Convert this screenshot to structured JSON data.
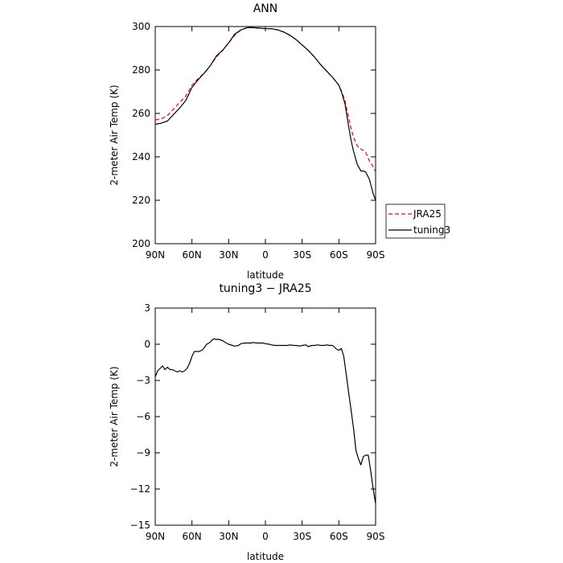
{
  "chart_data": [
    {
      "type": "line",
      "title": "ANN",
      "xlabel": "latitude",
      "ylabel": "2-meter Air Temp (K)",
      "xticks": [
        "90N",
        "60N",
        "30N",
        "0",
        "30S",
        "60S",
        "90S"
      ],
      "yticks": [
        "200",
        "220",
        "240",
        "260",
        "280",
        "300"
      ],
      "xlim": [
        90,
        -90
      ],
      "ylim": [
        200,
        300
      ],
      "legend_placement": "right",
      "series": [
        {
          "name": "JRA25",
          "color": "#ff0000",
          "dash": "dashed",
          "x": [
            90,
            85,
            80,
            75,
            70,
            65,
            60,
            55,
            50,
            45,
            40,
            35,
            30,
            25,
            20,
            15,
            10,
            5,
            0,
            -5,
            -10,
            -15,
            -20,
            -25,
            -30,
            -35,
            -40,
            -45,
            -50,
            -55,
            -60,
            -62,
            -65,
            -68,
            -70,
            -72,
            -75,
            -78,
            -80,
            -82,
            -85,
            -88,
            -90
          ],
          "y": [
            257,
            257.5,
            259,
            262,
            265,
            268,
            273,
            276,
            278.5,
            282,
            286,
            289,
            292.5,
            296,
            298.5,
            299.5,
            299.5,
            299.2,
            299,
            299,
            298.5,
            297.5,
            296,
            294,
            291.5,
            289,
            286,
            282.5,
            279.5,
            276.5,
            273,
            270.5,
            266,
            258,
            253,
            249,
            245,
            243.5,
            243,
            242,
            238,
            235.5,
            233
          ]
        },
        {
          "name": "tuning3",
          "color": "#000000",
          "dash": "solid",
          "x": [
            90,
            85,
            80,
            75,
            70,
            65,
            60,
            55,
            50,
            45,
            40,
            35,
            30,
            25,
            20,
            15,
            10,
            5,
            0,
            -5,
            -10,
            -15,
            -20,
            -25,
            -30,
            -35,
            -40,
            -45,
            -50,
            -55,
            -60,
            -62,
            -65,
            -68,
            -70,
            -72,
            -75,
            -78,
            -80,
            -82,
            -85,
            -88,
            -90
          ],
          "y": [
            255,
            255.5,
            256.5,
            259.5,
            262.5,
            266,
            272,
            275.5,
            278.5,
            282,
            286.5,
            289,
            292.5,
            296.5,
            298.5,
            299.5,
            299.5,
            299.3,
            299,
            299,
            298.5,
            297.5,
            296,
            294,
            291.5,
            289,
            286,
            282.5,
            279.5,
            276.5,
            273,
            270,
            264.5,
            254,
            247.5,
            242.5,
            236.5,
            233.5,
            233.5,
            233,
            229.5,
            223,
            220
          ]
        }
      ]
    },
    {
      "type": "line",
      "title": "tuning3 − JRA25",
      "xlabel": "latitude",
      "ylabel": "2-meter Air Temp (K)",
      "xticks": [
        "90N",
        "60N",
        "30N",
        "0",
        "30S",
        "60S",
        "90S"
      ],
      "yticks": [
        "−15",
        "−12",
        "−9",
        "−6",
        "−3",
        "0",
        "3"
      ],
      "xlim": [
        90,
        -90
      ],
      "ylim": [
        -15,
        3
      ],
      "series": [
        {
          "color": "#000000",
          "dash": "solid",
          "x": [
            90,
            88,
            86,
            84,
            82,
            80,
            78,
            76,
            74,
            72,
            70,
            68,
            66,
            64,
            62,
            60,
            58,
            56,
            54,
            52,
            50,
            48,
            46,
            44,
            42,
            40,
            38,
            35,
            32,
            30,
            27,
            25,
            22,
            20,
            17,
            15,
            12,
            10,
            7,
            5,
            2,
            0,
            -3,
            -5,
            -8,
            -10,
            -13,
            -15,
            -18,
            -20,
            -23,
            -25,
            -28,
            -30,
            -33,
            -35,
            -38,
            -40,
            -43,
            -45,
            -48,
            -50,
            -53,
            -55,
            -58,
            -60,
            -62,
            -64,
            -66,
            -68,
            -70,
            -72,
            -74,
            -76,
            -78,
            -80,
            -82,
            -84,
            -86,
            -88,
            -90
          ],
          "y": [
            -2.7,
            -2.2,
            -2.0,
            -1.8,
            -2.1,
            -1.9,
            -2.1,
            -2.1,
            -2.2,
            -2.3,
            -2.2,
            -2.3,
            -2.2,
            -2.0,
            -1.6,
            -1.0,
            -0.6,
            -0.6,
            -0.6,
            -0.5,
            -0.3,
            0.0,
            0.1,
            0.3,
            0.45,
            0.4,
            0.4,
            0.3,
            0.1,
            0.0,
            -0.1,
            -0.15,
            -0.1,
            0.05,
            0.1,
            0.1,
            0.1,
            0.15,
            0.1,
            0.1,
            0.1,
            0.05,
            0.0,
            -0.05,
            -0.1,
            -0.1,
            -0.1,
            -0.1,
            -0.1,
            -0.05,
            -0.1,
            -0.1,
            -0.15,
            -0.1,
            -0.05,
            -0.2,
            -0.1,
            -0.1,
            -0.05,
            -0.1,
            -0.1,
            -0.05,
            -0.1,
            -0.1,
            -0.4,
            -0.5,
            -0.35,
            -1.0,
            -2.5,
            -4.0,
            -5.5,
            -7.0,
            -8.8,
            -9.5,
            -10.0,
            -9.3,
            -9.2,
            -9.2,
            -10.5,
            -12.0,
            -13.2
          ]
        }
      ]
    }
  ],
  "legend": {
    "items": [
      {
        "label": "JRA25",
        "color": "#ff0000",
        "dash": "dashed"
      },
      {
        "label": "tuning3",
        "color": "#000000",
        "dash": "solid"
      }
    ]
  }
}
